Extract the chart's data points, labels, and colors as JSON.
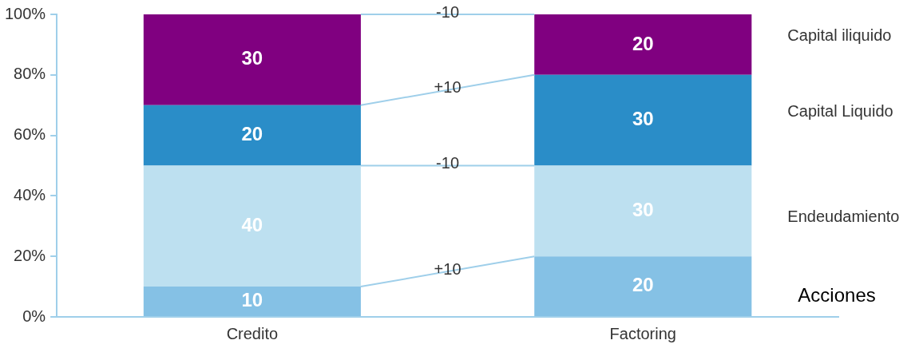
{
  "chart_data": {
    "type": "bar",
    "stacked": true,
    "data_labels": true,
    "categories": [
      "Credito",
      "Factoring"
    ],
    "series": [
      {
        "name": "Acciones",
        "color": "#85c1e5",
        "values": [
          10,
          20
        ]
      },
      {
        "name": "Endeudamiento",
        "color": "#bde0f0",
        "values": [
          40,
          30
        ]
      },
      {
        "name": "Capital Liquido",
        "color": "#2a8dc8",
        "values": [
          20,
          30
        ]
      },
      {
        "name": "Capital iliquido",
        "color": "#800080",
        "values": [
          30,
          20
        ]
      }
    ],
    "ylim": [
      0,
      100
    ],
    "yticks": [
      {
        "value": 0,
        "label": "0%"
      },
      {
        "value": 20,
        "label": "20%"
      },
      {
        "value": 40,
        "label": "40%"
      },
      {
        "value": 60,
        "label": "60%"
      },
      {
        "value": 80,
        "label": "80%"
      },
      {
        "value": 100,
        "label": "100%"
      }
    ],
    "annotations": [
      "-10",
      "+10",
      "-10",
      "+10"
    ]
  }
}
